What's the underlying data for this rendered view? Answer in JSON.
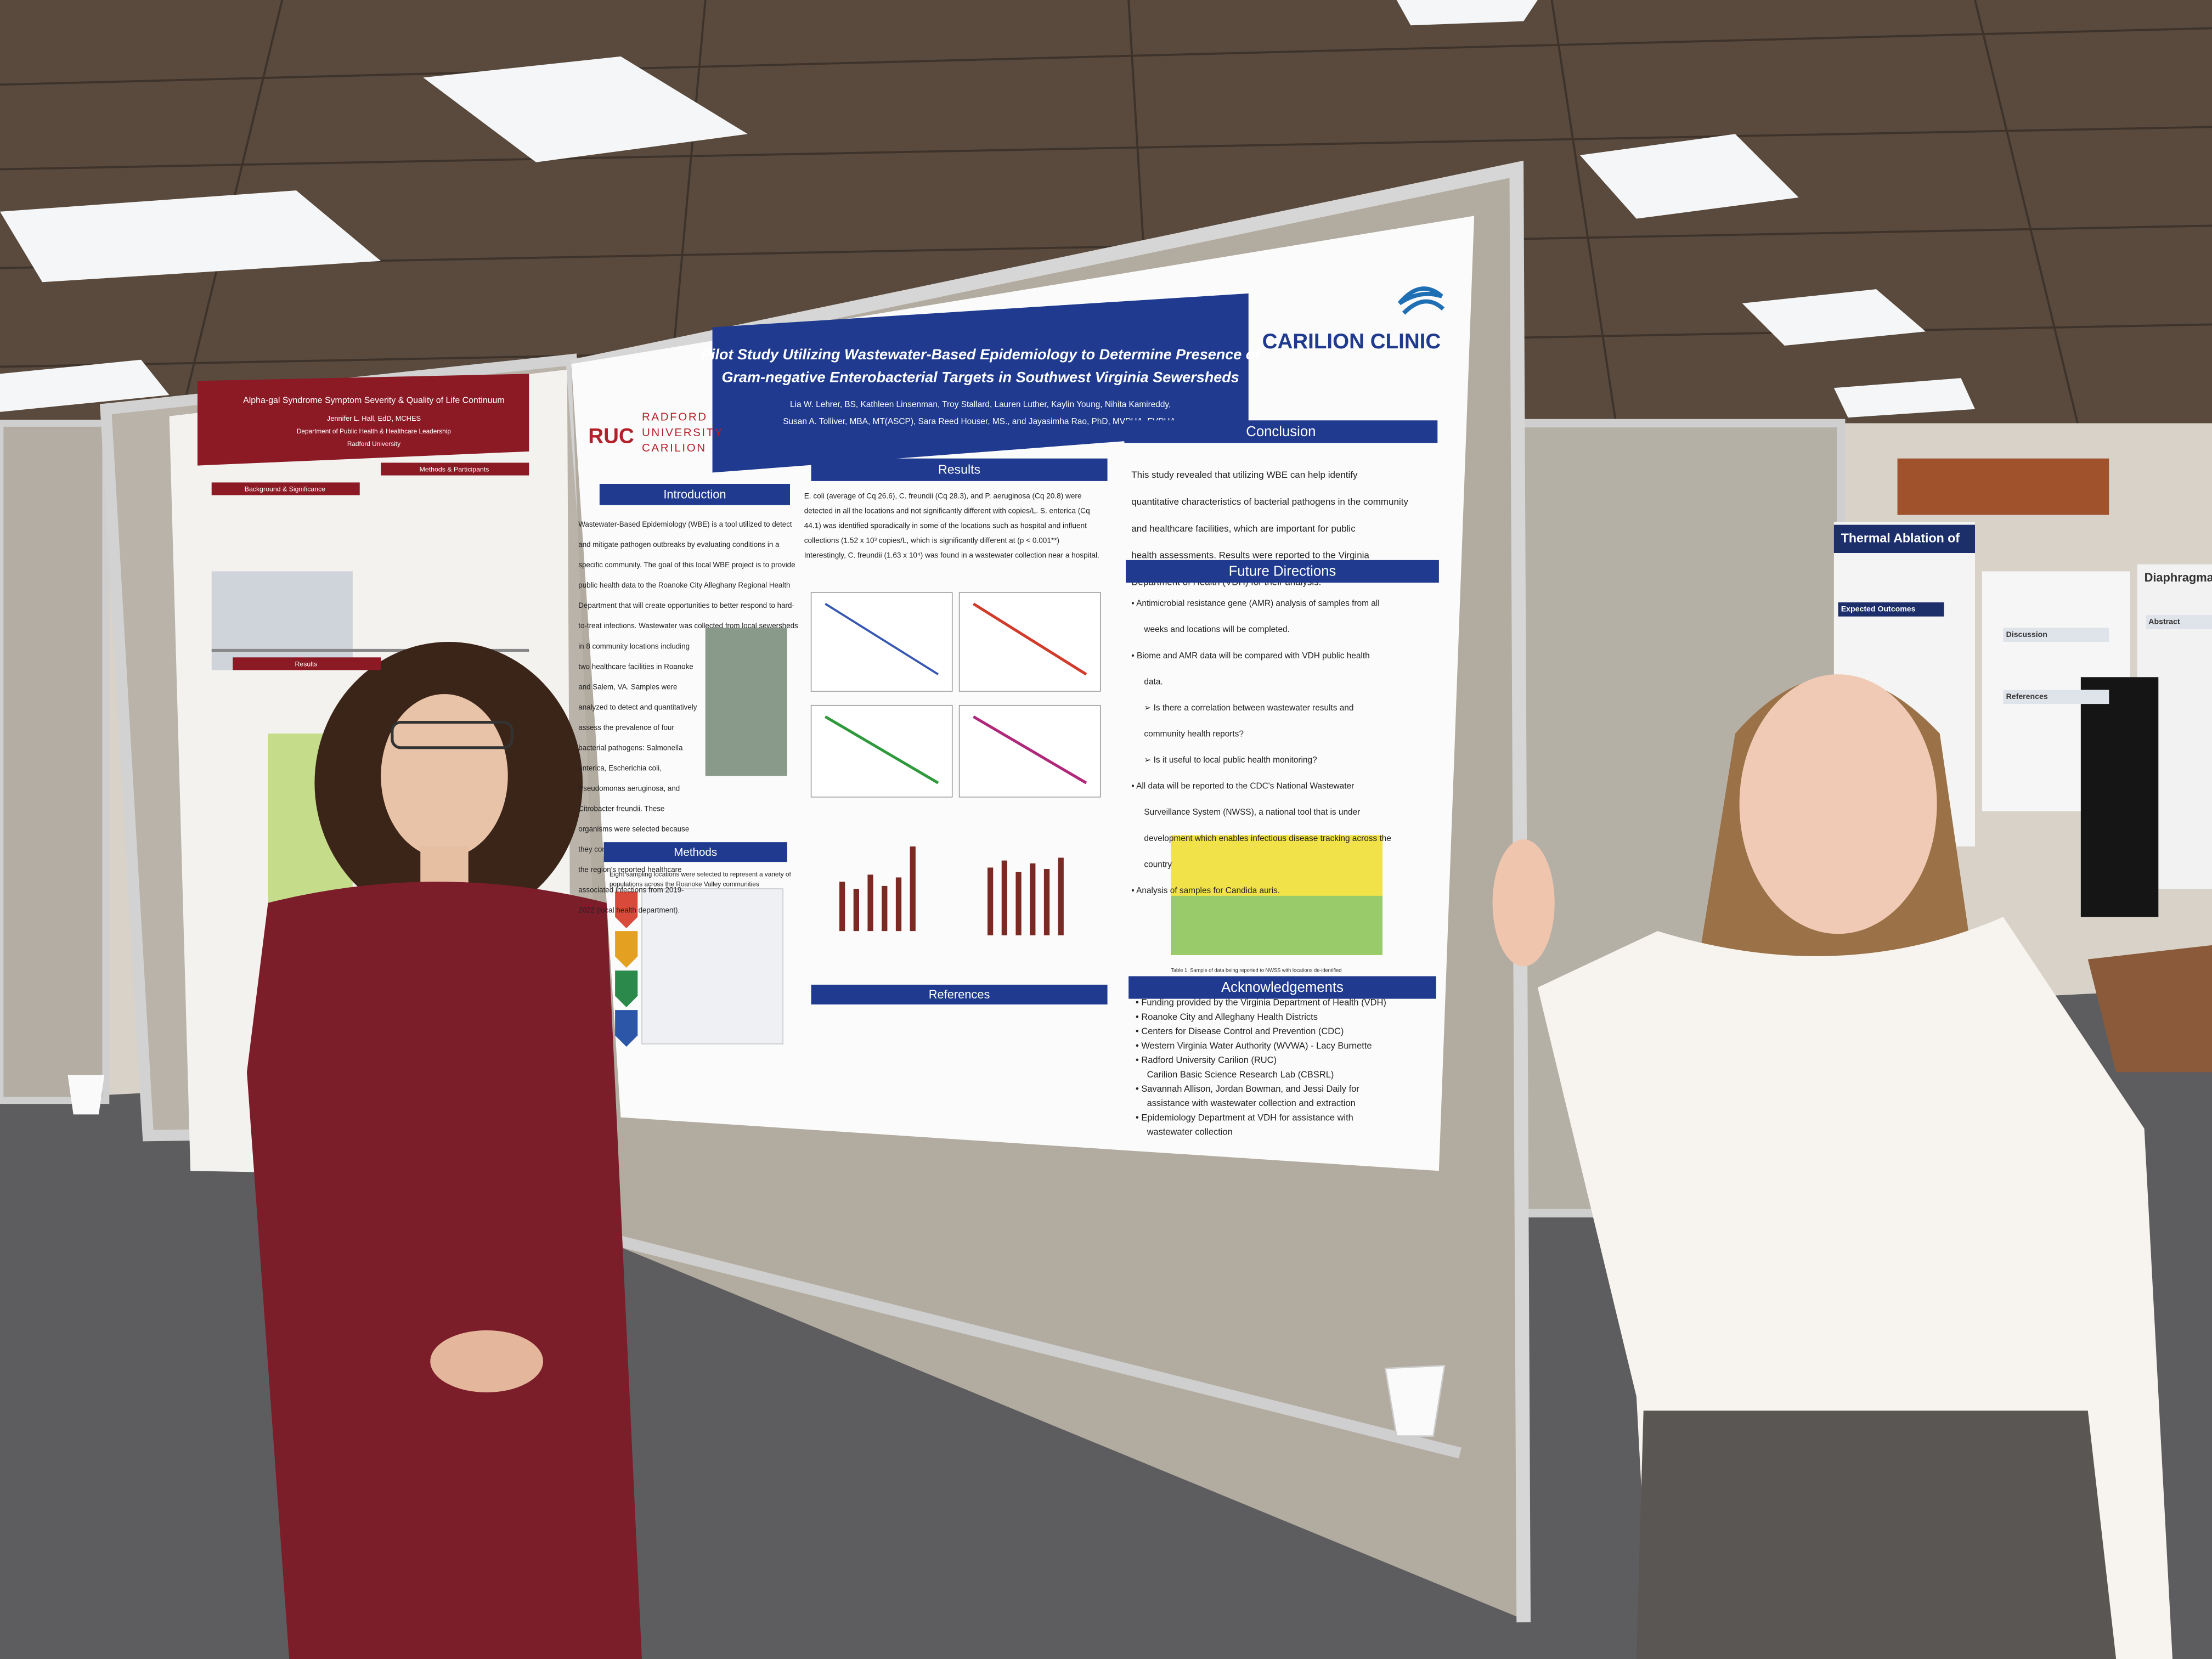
{
  "main_poster": {
    "title": [
      "Pilot Study Utilizing Wastewater-Based Epidemiology to Determine Presence of",
      "Gram-negative Enterobacterial Targets in Southwest Virginia Sewersheds"
    ],
    "authors": [
      "Lia W. Lehrer, BS, Kathleen Linsenman, Troy Stallard, Lauren Luther, Kaylin Young, Nihita Kamireddy,",
      "Susan A. Tolliver, MBA, MT(ASCP), Sara Reed Houser, MS., and Jayasimha Rao, PhD, MVPHA, FVPHA."
    ],
    "logo_left": {
      "mark": "RUC",
      "lines": [
        "RADFORD",
        "UNIVERSITY",
        "CARILION"
      ]
    },
    "logo_right": "CARILION CLINIC",
    "introduction": {
      "heading": "Introduction",
      "lines": [
        "Wastewater-Based Epidemiology (WBE) is a tool utilized to detect",
        "and mitigate pathogen outbreaks by evaluating conditions in a",
        "specific community. The goal of this local WBE project is to provide",
        "public health data to the Roanoke City Alleghany Regional Health",
        "Department that will create opportunities to better respond to hard-",
        "to-treat infections. Wastewater was collected from local sewersheds",
        "in 8 community locations including",
        "two healthcare facilities in Roanoke",
        "and Salem, VA. Samples were",
        "analyzed to detect and quantitatively",
        "assess the prevalence of four",
        "bacterial pathogens: Salmonella",
        "enterica, Escherichia coli,",
        "Pseudomonas aeruginosa, and",
        "Citrobacter freundii. These",
        "organisms were selected because",
        "they comprised about one-third of",
        "the region's reported healthcare",
        "associated infections from 2019-",
        "2022 (local health department)."
      ]
    },
    "results": {
      "heading": "Results",
      "lines": [
        "E. coli (average of Cq 26.6), C. freundii (Cq 28.3), and P. aeruginosa (Cq 20.8) were",
        "detected in all the locations and not significantly different with copies/L. S. enterica (Cq",
        "44.1) was identified sporadically in some of the locations such as hospital and influent",
        "collections (1.52 x 10³ copies/L, which is significantly different at (p < 0.001**)",
        "Interestingly, C. freundii (1.63 x 10⁴) was found in a wastewater collection near a hospital."
      ]
    },
    "methods": {
      "heading": "Methods",
      "lines": [
        "Eight sampling locations were selected to represent a variety of",
        "populations across the Roanoke Valley communities"
      ]
    },
    "references": {
      "heading": "References"
    },
    "conclusion": {
      "heading": "Conclusion",
      "lines": [
        "This study revealed that utilizing WBE can help identify",
        "quantitative characteristics of bacterial pathogens in the community",
        "and healthcare facilities, which are important for public",
        "health assessments. Results were reported to the Virginia",
        "Department of Health (VDH) for their analysis."
      ]
    },
    "future_directions": {
      "heading": "Future Directions",
      "lines": [
        "• Antimicrobial resistance gene (AMR) analysis of samples from all",
        "weeks and locations will be completed.",
        "• Biome and AMR data will be compared with VDH public health",
        "data.",
        "➢ Is there a correlation between wastewater results and",
        "community health reports?",
        "➢ Is it useful to local public health monitoring?",
        "• All data will be reported to the CDC's National Wastewater",
        "Surveillance System (NWSS), a national tool that is under",
        "development which enables infectious disease tracking across the",
        "country",
        "• Analysis of samples for Candida auris."
      ]
    },
    "table_caption": "Table 1. Sample of data being reported to NWSS with locations de-identified",
    "acknowledgements": {
      "heading": "Acknowledgements",
      "lines": [
        "• Funding provided by the Virginia Department of Health (VDH)",
        "• Roanoke City and Alleghany Health Districts",
        "• Centers for Disease Control and Prevention (CDC)",
        "• Western Virginia Water Authority (WVWA) - Lacy Burnette",
        "• Radford University Carilion (RUC)",
        "Carilion Basic Science Research Lab (CBSRL)",
        "• Savannah Allison, Jordan Bowman, and Jessi Daily for",
        "assistance with wastewater collection and extraction",
        "• Epidemiology Department at VDH for assistance with",
        "wastewater collection"
      ]
    }
  },
  "left_poster": {
    "title": "Alpha-gal Syndrome Symptom Severity & Quality of Life Continuum",
    "author": "Jennifer L. Hall, EdD, MCHES",
    "department": "Department of Public Health & Healthcare Leadership",
    "institution": "Radford University",
    "sections": [
      "Background & Significance",
      "Methods & Participants",
      "Results"
    ]
  },
  "other_posters": {
    "titles": [
      "Thermal Ablation of",
      "Diaphragmatic"
    ],
    "sections": [
      "Expected Outcomes",
      "Discussion",
      "References",
      "Abstract"
    ]
  }
}
